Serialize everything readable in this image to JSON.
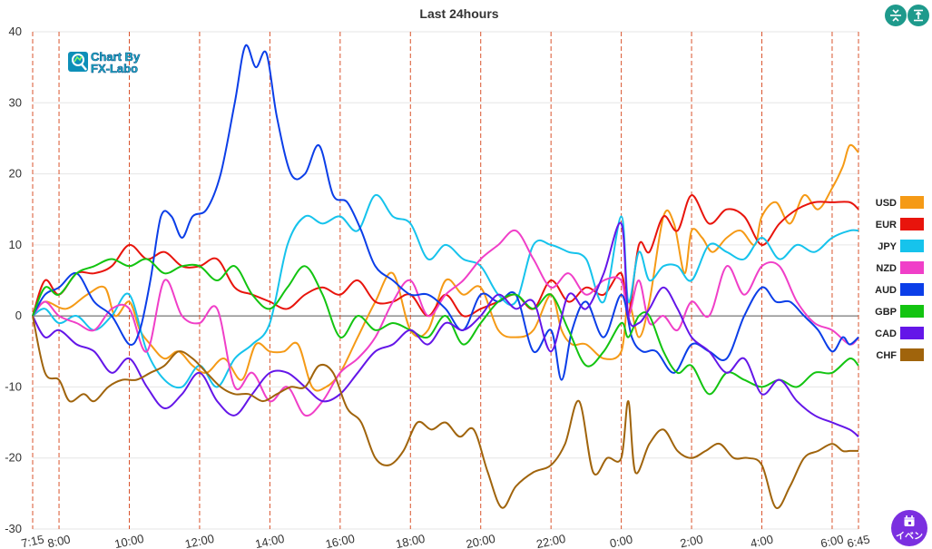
{
  "toolbar": {
    "fit_icon": "compress-vertical-icon",
    "top_icon": "align-top-icon"
  },
  "event_button": {
    "label": "イベン",
    "icon": "calendar-icon"
  },
  "logo": {
    "line1": "Chart By",
    "line2": "FX-Labo",
    "icon": "chart-magnifier-icon"
  },
  "chart_data": {
    "type": "line",
    "title": "Last 24hours",
    "xlabel": "",
    "ylabel": "",
    "ylim": [
      -30,
      40
    ],
    "xlim": [
      7.25,
      30.75
    ],
    "yticks": [
      40,
      30,
      20,
      10,
      0,
      -10,
      -20,
      -30
    ],
    "xticks": [
      {
        "label": "7:15",
        "t": 7.25
      },
      {
        "label": "8:00",
        "t": 8.0
      },
      {
        "label": "10:00",
        "t": 10.0
      },
      {
        "label": "12:00",
        "t": 12.0
      },
      {
        "label": "14:00",
        "t": 14.0
      },
      {
        "label": "16:00",
        "t": 16.0
      },
      {
        "label": "18:00",
        "t": 18.0
      },
      {
        "label": "20:00",
        "t": 20.0
      },
      {
        "label": "22:00",
        "t": 22.0
      },
      {
        "label": "0:00",
        "t": 24.0
      },
      {
        "label": "2:00",
        "t": 26.0
      },
      {
        "label": "4:00",
        "t": 28.0
      },
      {
        "label": "6:00",
        "t": 30.0
      },
      {
        "label": "6:45",
        "t": 30.75
      }
    ],
    "grid": true,
    "legend_position": "right",
    "series": [
      {
        "name": "USD",
        "color": "#f59a16",
        "x": [
          7.25,
          7.6,
          8.2,
          8.8,
          9.3,
          9.6,
          10.0,
          10.3,
          10.6,
          11.0,
          11.4,
          11.8,
          12.2,
          12.7,
          13.2,
          13.6,
          14.0,
          14.4,
          14.8,
          15.2,
          15.6,
          16.0,
          16.5,
          17.0,
          17.5,
          18.0,
          18.5,
          19.0,
          19.5,
          20.0,
          20.5,
          21.0,
          21.5,
          22.0,
          22.3,
          22.6,
          23.0,
          23.5,
          24.0,
          24.2,
          24.5,
          24.8,
          25.2,
          25.5,
          25.8,
          26.0,
          26.3,
          26.6,
          27.0,
          27.4,
          27.8,
          28.0,
          28.4,
          28.8,
          29.2,
          29.6,
          30.0,
          30.3,
          30.5,
          30.75
        ],
        "y": [
          0,
          2,
          1,
          3,
          4,
          0,
          2,
          -2,
          -4,
          -6,
          -5,
          -7,
          -8,
          -6,
          -9,
          -4,
          -5,
          -5,
          -4,
          -10,
          -10,
          -8,
          -3,
          2,
          6,
          -2,
          -2,
          5,
          3,
          4,
          -2,
          -3,
          -2,
          3,
          -2,
          -4,
          -4,
          -6,
          -5,
          2,
          -3,
          2,
          14,
          13,
          6,
          12,
          11,
          9,
          11,
          12,
          10,
          14,
          16,
          13,
          17,
          15,
          18,
          21,
          24,
          23
        ]
      },
      {
        "name": "EUR",
        "color": "#e8140c",
        "x": [
          7.25,
          7.6,
          8.0,
          8.5,
          9.0,
          9.5,
          10.0,
          10.5,
          11.0,
          11.5,
          12.0,
          12.5,
          13.0,
          13.5,
          14.0,
          14.5,
          15.0,
          15.5,
          16.0,
          16.5,
          17.0,
          17.5,
          18.0,
          18.5,
          19.0,
          19.5,
          20.0,
          20.5,
          21.0,
          21.5,
          22.0,
          22.5,
          23.0,
          23.5,
          24.0,
          24.2,
          24.5,
          24.8,
          25.2,
          25.6,
          26.0,
          26.5,
          27.0,
          27.5,
          28.0,
          28.5,
          29.0,
          29.5,
          30.0,
          30.5,
          30.75
        ],
        "y": [
          0,
          5,
          3,
          6,
          6,
          7,
          10,
          8,
          9,
          7,
          7,
          8,
          4,
          3,
          2,
          1,
          3,
          4,
          3,
          5,
          2,
          2,
          3,
          0,
          3,
          0,
          1,
          2,
          3,
          1,
          5,
          2,
          4,
          3,
          6,
          0,
          10,
          9,
          14,
          12,
          17,
          13,
          15,
          14,
          10,
          13,
          15,
          16,
          16,
          16,
          15
        ]
      },
      {
        "name": "JPY",
        "color": "#16c3ec",
        "x": [
          7.25,
          7.6,
          8.0,
          8.5,
          9.0,
          9.5,
          10.0,
          10.5,
          11.0,
          11.5,
          12.0,
          12.5,
          13.0,
          13.5,
          14.0,
          14.5,
          15.0,
          15.5,
          16.0,
          16.5,
          17.0,
          17.5,
          18.0,
          18.5,
          19.0,
          19.5,
          20.0,
          20.5,
          21.0,
          21.5,
          22.0,
          22.5,
          23.0,
          23.5,
          24.0,
          24.2,
          24.5,
          24.8,
          25.2,
          25.6,
          26.0,
          26.5,
          27.0,
          27.5,
          28.0,
          28.5,
          29.0,
          29.5,
          30.0,
          30.5,
          30.75
        ],
        "y": [
          0,
          1,
          -1,
          0,
          -2,
          0,
          3,
          -5,
          -9,
          -10,
          -7,
          -10,
          -6,
          -4,
          -1,
          10,
          14,
          13,
          14,
          12,
          17,
          14,
          13,
          8,
          10,
          8,
          7,
          3,
          2,
          10,
          10,
          9,
          8,
          2,
          14,
          2,
          9,
          5,
          7,
          7,
          5,
          10,
          9,
          8,
          11,
          8,
          10,
          9,
          11,
          12,
          12
        ]
      },
      {
        "name": "NZD",
        "color": "#f03fc8",
        "x": [
          7.25,
          7.6,
          8.0,
          8.5,
          9.0,
          9.5,
          10.0,
          10.5,
          11.0,
          11.5,
          12.0,
          12.5,
          13.0,
          13.5,
          14.0,
          14.5,
          15.0,
          15.5,
          16.0,
          16.5,
          17.0,
          17.5,
          18.0,
          18.5,
          19.0,
          19.5,
          20.0,
          20.5,
          21.0,
          21.5,
          22.0,
          22.5,
          23.0,
          23.5,
          24.0,
          24.2,
          24.5,
          24.8,
          25.2,
          25.6,
          26.0,
          26.5,
          27.0,
          27.5,
          28.0,
          28.5,
          29.0,
          29.5,
          30.0,
          30.5,
          30.75
        ],
        "y": [
          0,
          2,
          0,
          -1,
          -2,
          1,
          1,
          -5,
          5,
          0,
          -1,
          1,
          -10,
          -8,
          -12,
          -10,
          -14,
          -12,
          -8,
          -6,
          -3,
          2,
          5,
          0,
          3,
          5,
          8,
          10,
          12,
          8,
          4,
          6,
          3,
          5,
          5,
          0,
          5,
          -1,
          0,
          -2,
          2,
          0,
          7,
          3,
          7,
          7,
          2,
          -1,
          -2,
          -4,
          -3
        ]
      },
      {
        "name": "AUD",
        "color": "#0b3ee8",
        "x": [
          7.25,
          7.6,
          8.0,
          8.5,
          9.0,
          9.5,
          10.0,
          10.3,
          10.6,
          10.9,
          11.2,
          11.5,
          11.8,
          12.2,
          12.6,
          13.0,
          13.3,
          13.6,
          13.9,
          14.2,
          14.6,
          15.0,
          15.4,
          15.8,
          16.2,
          16.6,
          17.0,
          17.5,
          18.0,
          18.5,
          19.0,
          19.5,
          20.0,
          20.5,
          21.0,
          21.5,
          22.0,
          22.3,
          22.6,
          23.0,
          23.5,
          24.0,
          24.3,
          24.6,
          25.0,
          25.5,
          26.0,
          26.5,
          27.0,
          27.5,
          28.0,
          28.4,
          28.8,
          29.2,
          29.6,
          30.0,
          30.3,
          30.5,
          30.75
        ],
        "y": [
          0,
          3,
          4,
          6,
          2,
          0,
          -4,
          -2,
          5,
          14,
          14,
          11,
          14,
          15,
          20,
          30,
          38,
          35,
          37,
          28,
          20,
          20,
          24,
          17,
          16,
          12,
          7,
          5,
          3,
          3,
          1,
          -2,
          3,
          2,
          3,
          -5,
          -2,
          -9,
          -2,
          2,
          -3,
          3,
          -3,
          -5,
          -5,
          -8,
          -4,
          -5,
          -6,
          0,
          4,
          2,
          2,
          0,
          -2,
          -5,
          -3,
          -4,
          -3
        ]
      },
      {
        "name": "GBP",
        "color": "#13c411",
        "x": [
          7.25,
          7.6,
          8.0,
          8.5,
          9.0,
          9.5,
          10.0,
          10.5,
          11.0,
          11.5,
          12.0,
          12.5,
          13.0,
          13.5,
          14.0,
          14.5,
          15.0,
          15.5,
          16.0,
          16.5,
          17.0,
          17.5,
          18.0,
          18.5,
          19.0,
          19.5,
          20.0,
          20.5,
          21.0,
          21.5,
          22.0,
          22.5,
          23.0,
          23.5,
          24.0,
          24.2,
          24.5,
          24.8,
          25.2,
          25.6,
          26.0,
          26.5,
          27.0,
          27.5,
          28.0,
          28.5,
          29.0,
          29.5,
          30.0,
          30.5,
          30.75
        ],
        "y": [
          0,
          4,
          3,
          6,
          7,
          8,
          7,
          8,
          6,
          7,
          7,
          5,
          7,
          3,
          1,
          4,
          7,
          3,
          -3,
          0,
          -2,
          -1,
          -2,
          -3,
          0,
          -4,
          -1,
          2,
          3,
          1,
          3,
          -2,
          -7,
          -5,
          -1,
          -3,
          0,
          0,
          -5,
          -8,
          -7,
          -11,
          -8,
          -9,
          -10,
          -9,
          -10,
          -8,
          -8,
          -6,
          -7
        ]
      },
      {
        "name": "CAD",
        "color": "#6416e8",
        "x": [
          7.25,
          7.6,
          8.0,
          8.5,
          9.0,
          9.5,
          10.0,
          10.5,
          11.0,
          11.5,
          12.0,
          12.5,
          13.0,
          13.5,
          14.0,
          14.5,
          15.0,
          15.5,
          16.0,
          16.5,
          17.0,
          17.5,
          18.0,
          18.5,
          19.0,
          19.5,
          20.0,
          20.5,
          21.0,
          21.5,
          22.0,
          22.5,
          23.0,
          23.5,
          24.0,
          24.2,
          24.5,
          24.8,
          25.2,
          25.6,
          26.0,
          26.5,
          27.0,
          27.5,
          28.0,
          28.5,
          29.0,
          29.5,
          30.0,
          30.5,
          30.75
        ],
        "y": [
          0,
          -3,
          -2,
          -4,
          -5,
          -8,
          -6,
          -10,
          -13,
          -11,
          -8,
          -12,
          -14,
          -11,
          -8,
          -8,
          -10,
          -12,
          -11,
          -8,
          -5,
          -4,
          -2,
          -4,
          -1,
          -2,
          0,
          3,
          1,
          2,
          -5,
          3,
          1,
          6,
          13,
          0,
          -1,
          1,
          4,
          1,
          -3,
          -5,
          -8,
          -6,
          -11,
          -9,
          -12,
          -14,
          -15,
          -16,
          -17
        ]
      },
      {
        "name": "CHF",
        "color": "#a0640c",
        "x": [
          7.25,
          7.6,
          8.0,
          8.3,
          8.7,
          9.0,
          9.4,
          9.8,
          10.2,
          10.6,
          11.0,
          11.4,
          11.8,
          12.2,
          12.6,
          13.0,
          13.4,
          13.8,
          14.2,
          14.6,
          15.0,
          15.4,
          15.8,
          16.2,
          16.6,
          17.0,
          17.4,
          17.8,
          18.2,
          18.6,
          19.0,
          19.4,
          19.8,
          20.2,
          20.6,
          21.0,
          21.5,
          22.0,
          22.4,
          22.8,
          23.2,
          23.6,
          24.0,
          24.2,
          24.4,
          24.8,
          25.2,
          25.6,
          26.0,
          26.4,
          26.8,
          27.2,
          27.6,
          28.0,
          28.4,
          28.8,
          29.2,
          29.6,
          30.0,
          30.3,
          30.5,
          30.75
        ],
        "y": [
          0,
          -8,
          -9,
          -12,
          -11,
          -12,
          -10,
          -9,
          -9,
          -8,
          -7,
          -5,
          -6,
          -8,
          -10,
          -11,
          -11,
          -12,
          -11,
          -10,
          -10,
          -7,
          -8,
          -13,
          -15,
          -20,
          -21,
          -19,
          -15,
          -16,
          -15,
          -17,
          -16,
          -22,
          -27,
          -24,
          -22,
          -21,
          -18,
          -12,
          -22,
          -20,
          -20,
          -12,
          -22,
          -18,
          -16,
          -19,
          -20,
          -19,
          -18,
          -20,
          -20,
          -21,
          -27,
          -24,
          -20,
          -19,
          -18,
          -19,
          -19,
          -19
        ]
      }
    ]
  }
}
